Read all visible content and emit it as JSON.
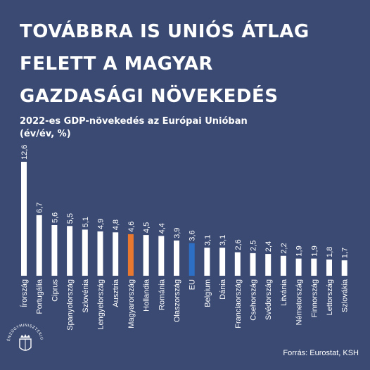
{
  "title_lines": [
    "Továbbra is uniós átlag",
    "felett a magyar",
    "gazdasági növekedés"
  ],
  "subtitle_lines": [
    "2022-es GDP-növekedés az Európai Unióban",
    "(év/év, %)"
  ],
  "source": "Forrás: Eurostat, KSH",
  "logo_text": "PÉNZÜGYMINISZTÉRIUM",
  "colors": {
    "background": "#3a4a73",
    "default_bar": "#ffffff",
    "hungary_bar": "#e8782f",
    "eu_bar": "#2d6fc4"
  },
  "chart_data": {
    "type": "bar",
    "title": "2022-es GDP-növekedés az Európai Unióban",
    "ylabel": "(év/év, %)",
    "ylim": [
      0,
      12.6
    ],
    "grid": false,
    "categories": [
      "Írország",
      "Portugália",
      "Ciprus",
      "Spanyolország",
      "Szlovénia",
      "Lengyelország",
      "Ausztria",
      "Magyarország",
      "Hollandia",
      "Románia",
      "Olaszország",
      "EU",
      "Belgium",
      "Dánia",
      "Franciaország",
      "Csehország",
      "Svédország",
      "Litvánia",
      "Németország",
      "Finnország",
      "Lettország",
      "Szlovákia"
    ],
    "values": [
      12.6,
      6.7,
      5.6,
      5.5,
      5.1,
      4.9,
      4.8,
      4.6,
      4.5,
      4.4,
      3.9,
      3.6,
      3.1,
      3.1,
      2.6,
      2.5,
      2.4,
      2.2,
      1.9,
      1.9,
      1.8,
      1.7
    ],
    "value_labels": [
      "12,6",
      "6,7",
      "5,6",
      "5,5",
      "5,1",
      "4,9",
      "4,8",
      "4,6",
      "4,5",
      "4,4",
      "3,9",
      "3,6",
      "3,1",
      "3,1",
      "2,6",
      "2,5",
      "2,4",
      "2,2",
      "1,9",
      "1,9",
      "1,8",
      "1,7"
    ],
    "highlight": {
      "Magyarország": "hungary_bar",
      "EU": "eu_bar"
    }
  }
}
